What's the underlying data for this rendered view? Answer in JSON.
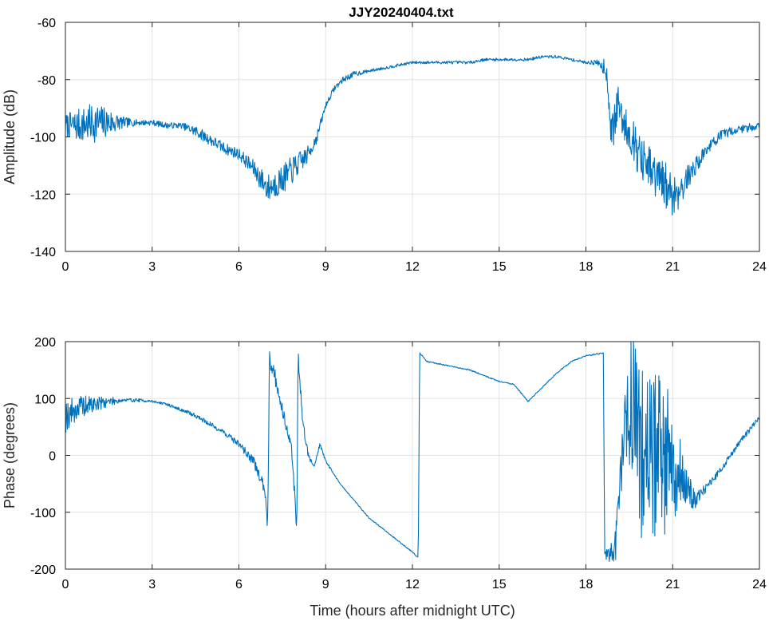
{
  "figure": {
    "title": "JJY20240404.txt",
    "line_color": "#0072BD",
    "grid": true
  },
  "chart_data": [
    {
      "type": "line",
      "title": "JJY20240404.txt",
      "xlabel": "",
      "ylabel": "Amplitude (dB)",
      "xlim": [
        0,
        24
      ],
      "ylim": [
        -140,
        -60
      ],
      "x_ticks": [
        0,
        3,
        6,
        9,
        12,
        15,
        18,
        21,
        24
      ],
      "y_ticks": [
        -140,
        -120,
        -100,
        -80,
        -60
      ],
      "x": [
        0,
        0.5,
        1,
        1.5,
        2,
        2.5,
        3,
        3.5,
        4,
        4.5,
        5,
        5.5,
        6,
        6.5,
        7,
        7.5,
        7.8,
        8.1,
        8.4,
        8.7,
        9,
        9.3,
        9.6,
        10,
        10.5,
        11,
        11.5,
        12,
        12.5,
        13,
        13.5,
        14,
        14.5,
        15,
        15.5,
        16,
        16.5,
        17,
        17.5,
        18,
        18.4,
        18.7,
        18.9,
        19.1,
        19.3,
        19.6,
        19.9,
        20.2,
        20.5,
        20.8,
        21.1,
        21.4,
        21.8,
        22.2,
        22.6,
        23,
        23.5,
        24
      ],
      "y": [
        -96,
        -96,
        -95,
        -95,
        -95,
        -95,
        -95,
        -96,
        -96,
        -98,
        -101,
        -104,
        -106,
        -111,
        -118,
        -115,
        -112,
        -109,
        -106,
        -100,
        -89,
        -83,
        -80,
        -78,
        -77,
        -76,
        -75,
        -74,
        -74,
        -74,
        -74,
        -74,
        -73,
        -73,
        -73,
        -73,
        -72,
        -72,
        -73,
        -74,
        -74,
        -76,
        -100,
        -88,
        -95,
        -100,
        -108,
        -112,
        -115,
        -118,
        -120,
        -116,
        -110,
        -104,
        -100,
        -98,
        -97,
        -96
      ],
      "noise": [
        4,
        6,
        7,
        5,
        2,
        1,
        1,
        1,
        1,
        2,
        2,
        2,
        2,
        3,
        5,
        5,
        5,
        4,
        3,
        2,
        1,
        1,
        1,
        1,
        0.5,
        0.5,
        0.5,
        0.5,
        0.5,
        0.5,
        0.5,
        0.5,
        0.5,
        0.5,
        0.5,
        0.5,
        0.5,
        0.5,
        0.5,
        0.5,
        1,
        4,
        8,
        6,
        6,
        7,
        8,
        9,
        9,
        9,
        8,
        5,
        3,
        2,
        2,
        1.5,
        1.5,
        1.5
      ],
      "seed": 7
    },
    {
      "type": "line",
      "title": "",
      "xlabel": "Time (hours after midnight UTC)",
      "ylabel": "Phase (degrees)",
      "xlim": [
        0,
        24
      ],
      "ylim": [
        -200,
        200
      ],
      "x_ticks": [
        0,
        3,
        6,
        9,
        12,
        15,
        18,
        21,
        24
      ],
      "y_ticks": [
        -200,
        -100,
        0,
        100,
        200
      ],
      "x": [
        0,
        0.5,
        1,
        1.5,
        2,
        2.5,
        3,
        3.5,
        4,
        4.5,
        5,
        5.5,
        6,
        6.5,
        6.9,
        7.0,
        7.05,
        7.2,
        7.5,
        7.8,
        8.0,
        8.05,
        8.2,
        8.4,
        8.6,
        8.8,
        9,
        9.5,
        10,
        10.5,
        11,
        11.5,
        12,
        12.2,
        12.25,
        12.5,
        13,
        13.5,
        14,
        14.5,
        15,
        15.5,
        16,
        16.5,
        17,
        17.5,
        18,
        18.6,
        18.65,
        19.0,
        19.3,
        19.6,
        20.0,
        20.5,
        21.0,
        21.4,
        21.8,
        22.2,
        22.6,
        23,
        23.5,
        24
      ],
      "y": [
        70,
        85,
        90,
        95,
        97,
        97,
        95,
        90,
        80,
        70,
        55,
        40,
        20,
        -10,
        -60,
        -120,
        170,
        150,
        80,
        20,
        -120,
        175,
        60,
        0,
        -20,
        20,
        -10,
        -50,
        -80,
        -110,
        -130,
        -150,
        -170,
        -180,
        180,
        165,
        160,
        155,
        150,
        140,
        130,
        125,
        95,
        120,
        145,
        165,
        175,
        180,
        -175,
        -170,
        30,
        100,
        0,
        0,
        0,
        -50,
        -80,
        -55,
        -30,
        0,
        35,
        65
      ],
      "noise": [
        30,
        20,
        15,
        8,
        4,
        3,
        2,
        2,
        3,
        4,
        4,
        5,
        6,
        8,
        10,
        20,
        20,
        15,
        10,
        10,
        20,
        20,
        10,
        6,
        4,
        3,
        2,
        1,
        1,
        1,
        1,
        1,
        1,
        1,
        1,
        1,
        1,
        1,
        1,
        1,
        1,
        1,
        1,
        1,
        1,
        1,
        1,
        1,
        5,
        30,
        60,
        150,
        170,
        170,
        120,
        40,
        15,
        8,
        6,
        5,
        5,
        5
      ],
      "seed": 19
    }
  ]
}
